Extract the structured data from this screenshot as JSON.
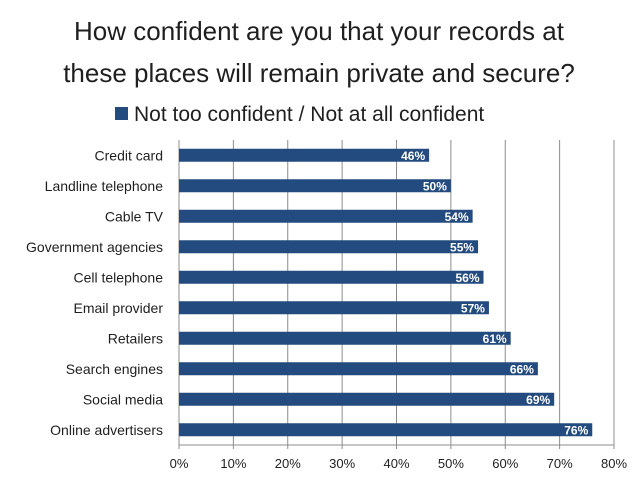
{
  "chart_data": {
    "type": "bar",
    "orientation": "horizontal",
    "title_lines": [
      "How confident are you that your records at",
      "these places will remain private and secure?"
    ],
    "legend": "Not too confident / Not at all confident",
    "categories": [
      "Credit card",
      "Landline telephone",
      "Cable TV",
      "Government agencies",
      "Cell telephone",
      "Email provider",
      "Retailers",
      "Search engines",
      "Social media",
      "Online advertisers"
    ],
    "values": [
      46,
      50,
      54,
      55,
      56,
      57,
      61,
      66,
      69,
      76
    ],
    "value_labels": [
      "46%",
      "50%",
      "54%",
      "55%",
      "56%",
      "57%",
      "61%",
      "66%",
      "69%",
      "76%"
    ],
    "x_ticks": [
      0,
      10,
      20,
      30,
      40,
      50,
      60,
      70,
      80
    ],
    "x_tick_labels": [
      "0%",
      "10%",
      "20%",
      "30%",
      "40%",
      "50%",
      "60%",
      "70%",
      "80%"
    ],
    "xlim": [
      0,
      80
    ],
    "grid": true,
    "legend_position": "top",
    "colors": {
      "bar": "#244b7f",
      "grid": "#8c8c8c",
      "label_text": "#ffffff"
    }
  }
}
